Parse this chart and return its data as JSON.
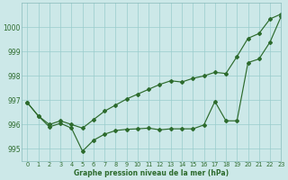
{
  "xlabel": "Graphe pression niveau de la mer (hPa)",
  "bg_color": "#cce8e8",
  "grid_color": "#99cccc",
  "line_color": "#2d6b2d",
  "ylim": [
    994.5,
    1001.0
  ],
  "xlim": [
    -0.5,
    23
  ],
  "yticks": [
    995,
    996,
    997,
    998,
    999,
    1000
  ],
  "xticks": [
    0,
    1,
    2,
    3,
    4,
    5,
    6,
    7,
    8,
    9,
    10,
    11,
    12,
    13,
    14,
    15,
    16,
    17,
    18,
    19,
    20,
    21,
    22,
    23
  ],
  "line_steep": [
    996.9,
    996.35,
    996.0,
    996.15,
    996.0,
    995.85,
    996.2,
    996.55,
    996.8,
    997.05,
    997.25,
    997.45,
    997.65,
    997.8,
    997.75,
    997.9,
    998.0,
    998.15,
    998.1,
    998.8,
    999.55,
    999.75,
    1000.35,
    1000.55
  ],
  "line_lower": [
    996.9,
    996.35,
    995.9,
    996.05,
    995.85,
    994.9,
    995.35,
    995.6,
    995.75,
    995.8,
    995.82,
    995.85,
    995.78,
    995.82,
    995.82,
    995.82,
    995.98,
    996.95,
    996.15,
    996.15,
    998.55,
    998.7,
    999.4,
    1000.45
  ]
}
